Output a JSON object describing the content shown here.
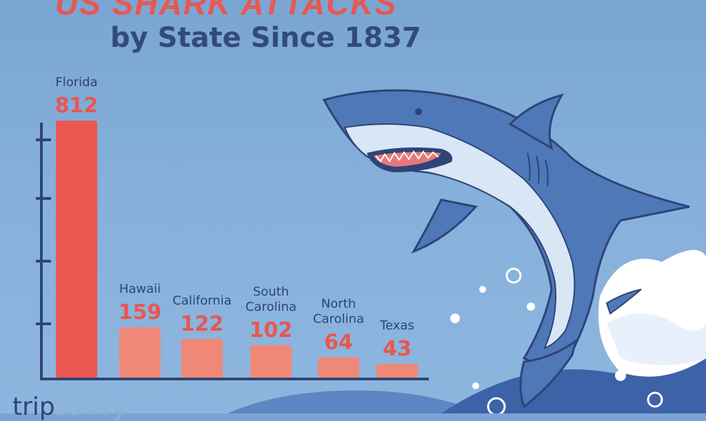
{
  "header": {
    "title": "US SHARK ATTACKS",
    "subtitle": "by State Since 1837"
  },
  "brand": {
    "strong": "trip",
    "light": "savvy"
  },
  "colors": {
    "background": "#7aa5d3",
    "bar_top": "#e9574f",
    "bar_rest": "#f08878",
    "axis": "#2f4476",
    "category_label": "#2f4476",
    "value_label": "#e9574f"
  },
  "chart_data": {
    "type": "bar",
    "title": "US SHARK ATTACKS",
    "subtitle": "by State Since 1837",
    "categories": [
      "Florida",
      "Hawaii",
      "California",
      "South\nCarolina",
      "North\nCarolina",
      "Texas"
    ],
    "values": [
      812,
      159,
      122,
      102,
      64,
      43
    ],
    "xlabel": "",
    "ylabel": "",
    "ylim": [
      0,
      812
    ],
    "grid": false,
    "legend": "none"
  },
  "illustration": {
    "subject": "shark-leaping-from-wave"
  }
}
